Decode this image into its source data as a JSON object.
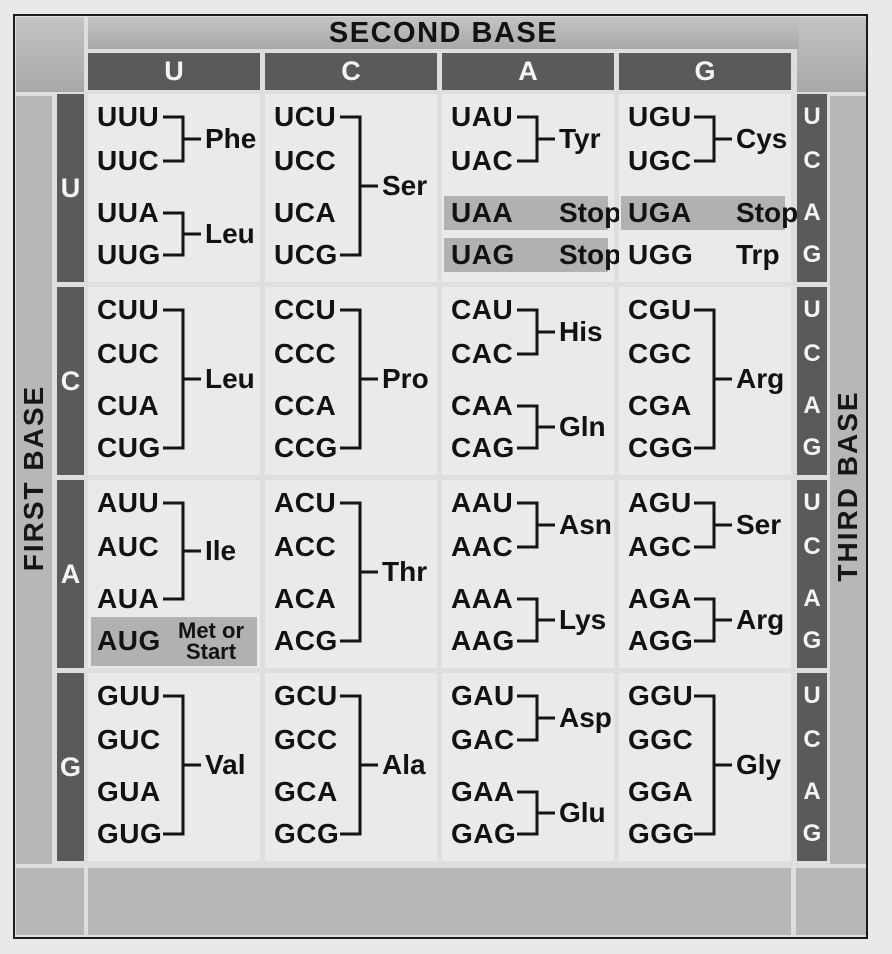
{
  "headers": {
    "second_base": "SECOND BASE",
    "first_base": "FIRST BASE",
    "third_base": "THIRD BASE"
  },
  "bases": [
    "U",
    "C",
    "A",
    "G"
  ],
  "palette": {
    "page_bg": "#e9e9e9",
    "frame_border": "#1b1b1b",
    "margin_gray": "#b7b7b7",
    "dark_bar": "#5a5a5a",
    "cell_bg": "#eaeaea",
    "highlight_gray": "#b1b1b1",
    "text": "#121212",
    "bar_text": "#f4f4f4"
  },
  "rows": [
    {
      "base": "U",
      "cells": [
        {
          "groups": [
            {
              "codons": [
                "UUU",
                "UUC"
              ],
              "slots": [
                0,
                1
              ],
              "label": "Phe",
              "bracket": true
            },
            {
              "codons": [
                "UUA",
                "UUG"
              ],
              "slots": [
                2,
                3
              ],
              "label": "Leu",
              "bracket": true
            }
          ]
        },
        {
          "groups": [
            {
              "codons": [
                "UCU",
                "UCC",
                "UCA",
                "UCG"
              ],
              "slots": [
                0,
                1,
                2,
                3
              ],
              "label": "Ser",
              "bracket": true
            }
          ]
        },
        {
          "groups": [
            {
              "codons": [
                "UAU",
                "UAC"
              ],
              "slots": [
                0,
                1
              ],
              "label": "Tyr",
              "bracket": true
            },
            {
              "codons": [
                "UAA"
              ],
              "slots": [
                2
              ],
              "label": "Stop",
              "highlight": true
            },
            {
              "codons": [
                "UAG"
              ],
              "slots": [
                3
              ],
              "label": "Stop",
              "highlight": true
            }
          ]
        },
        {
          "groups": [
            {
              "codons": [
                "UGU",
                "UGC"
              ],
              "slots": [
                0,
                1
              ],
              "label": "Cys",
              "bracket": true
            },
            {
              "codons": [
                "UGA"
              ],
              "slots": [
                2
              ],
              "label": "Stop",
              "highlight": true
            },
            {
              "codons": [
                "UGG"
              ],
              "slots": [
                3
              ],
              "label": "Trp"
            }
          ]
        }
      ]
    },
    {
      "base": "C",
      "cells": [
        {
          "groups": [
            {
              "codons": [
                "CUU",
                "CUC",
                "CUA",
                "CUG"
              ],
              "slots": [
                0,
                1,
                2,
                3
              ],
              "label": "Leu",
              "bracket": true
            }
          ]
        },
        {
          "groups": [
            {
              "codons": [
                "CCU",
                "CCC",
                "CCA",
                "CCG"
              ],
              "slots": [
                0,
                1,
                2,
                3
              ],
              "label": "Pro",
              "bracket": true
            }
          ]
        },
        {
          "groups": [
            {
              "codons": [
                "CAU",
                "CAC"
              ],
              "slots": [
                0,
                1
              ],
              "label": "His",
              "bracket": true
            },
            {
              "codons": [
                "CAA",
                "CAG"
              ],
              "slots": [
                2,
                3
              ],
              "label": "Gln",
              "bracket": true
            }
          ]
        },
        {
          "groups": [
            {
              "codons": [
                "CGU",
                "CGC",
                "CGA",
                "CGG"
              ],
              "slots": [
                0,
                1,
                2,
                3
              ],
              "label": "Arg",
              "bracket": true
            }
          ]
        }
      ]
    },
    {
      "base": "A",
      "cells": [
        {
          "groups": [
            {
              "codons": [
                "AUU",
                "AUC",
                "AUA"
              ],
              "slots": [
                0,
                1,
                2
              ],
              "label": "Ile",
              "bracket": true
            },
            {
              "codons": [
                "AUG"
              ],
              "slots": [
                3
              ],
              "label_lines": [
                "Met or",
                "Start"
              ],
              "highlight": true,
              "tall": true
            }
          ]
        },
        {
          "groups": [
            {
              "codons": [
                "ACU",
                "ACC",
                "ACA",
                "ACG"
              ],
              "slots": [
                0,
                1,
                2,
                3
              ],
              "label": "Thr",
              "bracket": true
            }
          ]
        },
        {
          "groups": [
            {
              "codons": [
                "AAU",
                "AAC"
              ],
              "slots": [
                0,
                1
              ],
              "label": "Asn",
              "bracket": true
            },
            {
              "codons": [
                "AAA",
                "AAG"
              ],
              "slots": [
                2,
                3
              ],
              "label": "Lys",
              "bracket": true
            }
          ]
        },
        {
          "groups": [
            {
              "codons": [
                "AGU",
                "AGC"
              ],
              "slots": [
                0,
                1
              ],
              "label": "Ser",
              "bracket": true
            },
            {
              "codons": [
                "AGA",
                "AGG"
              ],
              "slots": [
                2,
                3
              ],
              "label": "Arg",
              "bracket": true
            }
          ]
        }
      ]
    },
    {
      "base": "G",
      "cells": [
        {
          "groups": [
            {
              "codons": [
                "GUU",
                "GUC",
                "GUA",
                "GUG"
              ],
              "slots": [
                0,
                1,
                2,
                3
              ],
              "label": "Val",
              "bracket": true
            }
          ]
        },
        {
          "groups": [
            {
              "codons": [
                "GCU",
                "GCC",
                "GCA",
                "GCG"
              ],
              "slots": [
                0,
                1,
                2,
                3
              ],
              "label": "Ala",
              "bracket": true
            }
          ]
        },
        {
          "groups": [
            {
              "codons": [
                "GAU",
                "GAC"
              ],
              "slots": [
                0,
                1
              ],
              "label": "Asp",
              "bracket": true
            },
            {
              "codons": [
                "GAA",
                "GAG"
              ],
              "slots": [
                2,
                3
              ],
              "label": "Glu",
              "bracket": true
            }
          ]
        },
        {
          "groups": [
            {
              "codons": [
                "GGU",
                "GGC",
                "GGA",
                "GGG"
              ],
              "slots": [
                0,
                1,
                2,
                3
              ],
              "label": "Gly",
              "bracket": true
            }
          ]
        }
      ]
    }
  ]
}
